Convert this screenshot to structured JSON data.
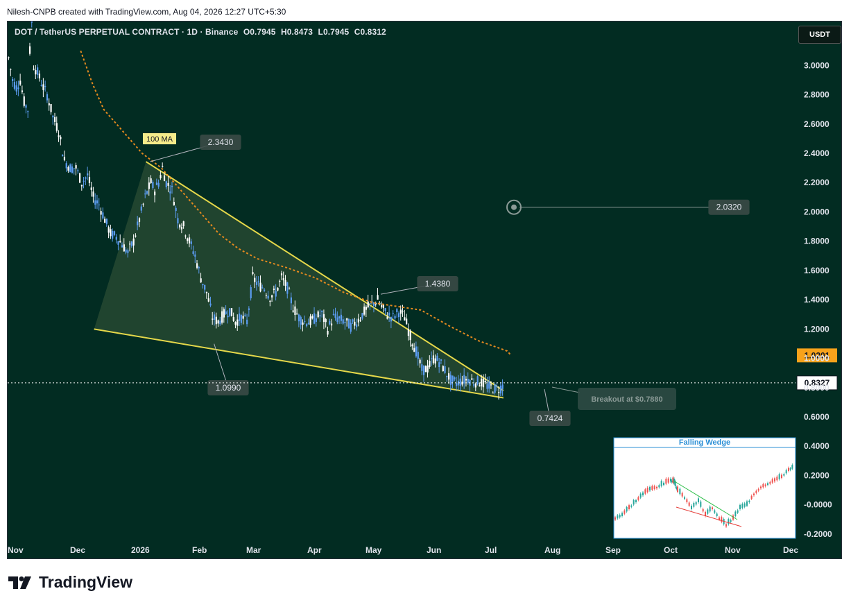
{
  "header": {
    "credit": "Nilesh-CNPB created with TradingView.com, Aug 04, 2026 12:27 UTC+5:30"
  },
  "legend": {
    "symbol": "DOT / TetherUS PERPETUAL CONTRACT · 1D · Binance",
    "open": "O0.7945",
    "high": "H0.8473",
    "low": "L0.7945",
    "close": "C0.8312"
  },
  "currency_button": "USDT",
  "footer": {
    "brand": "TradingView"
  },
  "colors": {
    "background": "#022c22",
    "candle_up": "#ffffff",
    "candle_down": "#5b9cf2",
    "wedge_line": "#e5d84a",
    "wedge_fill": "#3a5a3a",
    "ma": "#e58a1f",
    "current_price": "#ffffff",
    "ma_price_label": "#f7a21b"
  },
  "chart_data": {
    "type": "candlestick",
    "y_ticks": [
      "3.0000",
      "2.8000",
      "2.6000",
      "2.4000",
      "2.2000",
      "2.0000",
      "1.8000",
      "1.6000",
      "1.4000",
      "1.2000",
      "1.0000",
      "0.8000",
      "0.6000",
      "0.4000",
      "0.2000",
      "-0.0000",
      "-0.2000"
    ],
    "x_ticks": [
      "Nov",
      "Dec",
      "2026",
      "Feb",
      "Mar",
      "Apr",
      "May",
      "Jun",
      "Jul",
      "Aug",
      "Sep",
      "Oct",
      "Nov",
      "Dec"
    ],
    "price_path": [
      [
        0,
        3.05
      ],
      [
        2,
        2.9
      ],
      [
        4,
        2.85
      ],
      [
        6,
        2.9
      ],
      [
        8,
        2.75
      ],
      [
        10,
        2.7
      ],
      [
        11,
        3.1
      ],
      [
        12,
        3.3
      ],
      [
        13,
        3.0
      ],
      [
        15,
        2.95
      ],
      [
        18,
        2.85
      ],
      [
        20,
        2.8
      ],
      [
        23,
        2.65
      ],
      [
        26,
        2.55
      ],
      [
        29,
        2.35
      ],
      [
        32,
        2.3
      ],
      [
        35,
        2.3
      ],
      [
        38,
        2.2
      ],
      [
        41,
        2.25
      ],
      [
        44,
        2.1
      ],
      [
        47,
        2.05
      ],
      [
        50,
        1.95
      ],
      [
        53,
        1.85
      ],
      [
        56,
        1.83
      ],
      [
        59,
        1.78
      ],
      [
        62,
        1.72
      ],
      [
        65,
        1.8
      ],
      [
        68,
        1.95
      ],
      [
        71,
        2.1
      ],
      [
        74,
        2.2
      ],
      [
        76,
        2.15
      ],
      [
        78,
        2.2
      ],
      [
        80,
        2.3
      ],
      [
        82,
        2.2
      ],
      [
        85,
        2.15
      ],
      [
        88,
        1.95
      ],
      [
        91,
        1.9
      ],
      [
        94,
        1.8
      ],
      [
        97,
        1.7
      ],
      [
        100,
        1.55
      ],
      [
        103,
        1.45
      ],
      [
        106,
        1.28
      ],
      [
        109,
        1.25
      ],
      [
        112,
        1.3
      ],
      [
        115,
        1.33
      ],
      [
        118,
        1.25
      ],
      [
        121,
        1.28
      ],
      [
        124,
        1.25
      ],
      [
        127,
        1.55
      ],
      [
        130,
        1.5
      ],
      [
        133,
        1.48
      ],
      [
        136,
        1.42
      ],
      [
        139,
        1.45
      ],
      [
        142,
        1.55
      ],
      [
        145,
        1.48
      ],
      [
        148,
        1.35
      ],
      [
        151,
        1.28
      ],
      [
        154,
        1.25
      ],
      [
        157,
        1.25
      ],
      [
        160,
        1.28
      ],
      [
        163,
        1.3
      ],
      [
        166,
        1.2
      ],
      [
        169,
        1.28
      ],
      [
        172,
        1.27
      ],
      [
        175,
        1.25
      ],
      [
        178,
        1.22
      ],
      [
        181,
        1.25
      ],
      [
        184,
        1.3
      ],
      [
        187,
        1.35
      ],
      [
        190,
        1.38
      ],
      [
        192,
        1.4
      ],
      [
        194,
        1.35
      ],
      [
        197,
        1.3
      ],
      [
        200,
        1.28
      ],
      [
        203,
        1.32
      ],
      [
        206,
        1.28
      ],
      [
        209,
        1.15
      ],
      [
        212,
        1.05
      ],
      [
        215,
        0.92
      ],
      [
        218,
        0.93
      ],
      [
        221,
        1.0
      ],
      [
        224,
        0.98
      ],
      [
        227,
        0.92
      ],
      [
        230,
        0.85
      ],
      [
        233,
        0.83
      ],
      [
        236,
        0.85
      ],
      [
        239,
        0.86
      ],
      [
        242,
        0.84
      ],
      [
        245,
        0.84
      ],
      [
        248,
        0.82
      ],
      [
        251,
        0.8
      ],
      [
        254,
        0.79
      ],
      [
        256,
        0.8
      ],
      [
        258,
        0.83
      ]
    ],
    "x_day_range": [
      0,
      410
    ],
    "annotations": [
      {
        "label": "2.3430",
        "x": 72,
        "y": 2.343
      },
      {
        "label": "1.4380",
        "x": 192,
        "y": 1.438
      },
      {
        "label": "1.0990",
        "x": 106,
        "y": 1.099
      },
      {
        "label": "0.7424",
        "x": 252,
        "y": 0.7424
      },
      {
        "label": "2.0320",
        "x": 330,
        "y": 2.032
      }
    ],
    "ma_label": "100 MA",
    "ma_path": [
      [
        38,
        3.1
      ],
      [
        44,
        2.88
      ],
      [
        50,
        2.7
      ],
      [
        60,
        2.55
      ],
      [
        70,
        2.4
      ],
      [
        80,
        2.3
      ],
      [
        90,
        2.15
      ],
      [
        100,
        2.0
      ],
      [
        110,
        1.85
      ],
      [
        120,
        1.75
      ],
      [
        130,
        1.68
      ],
      [
        145,
        1.62
      ],
      [
        160,
        1.55
      ],
      [
        175,
        1.45
      ],
      [
        190,
        1.38
      ],
      [
        205,
        1.35
      ],
      [
        215,
        1.33
      ],
      [
        230,
        1.22
      ],
      [
        245,
        1.12
      ],
      [
        260,
        1.05
      ],
      [
        262,
        1.02
      ]
    ],
    "wedge": {
      "upper": [
        [
          72,
          2.343
        ],
        [
          258,
          0.78
        ]
      ],
      "lower": [
        [
          45,
          1.2
        ],
        [
          258,
          0.73
        ]
      ]
    },
    "price_labels": {
      "current": "0.8327",
      "ma": "1.0201"
    },
    "breakout_label": "Breakout at $0.7880",
    "inset_title": "Falling Wedge",
    "y_range": [
      -0.3,
      3.3
    ]
  }
}
